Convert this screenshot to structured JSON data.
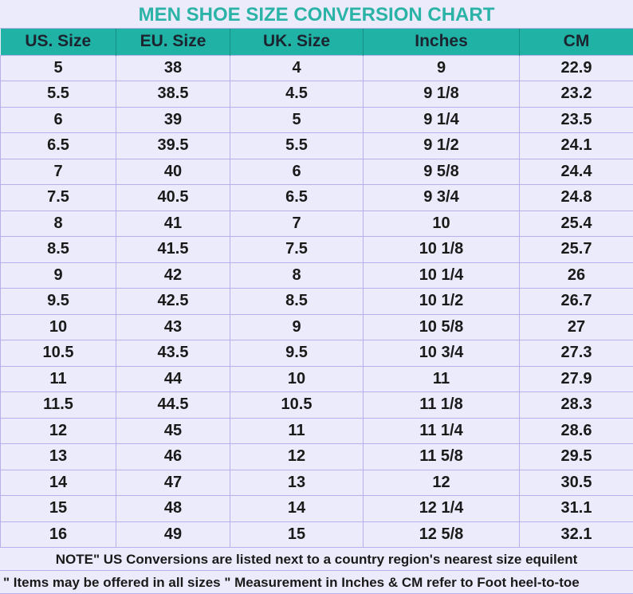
{
  "chart_data": {
    "type": "table",
    "title": "MEN SHOE SIZE CONVERSION CHART",
    "columns": [
      "US. Size",
      "EU. Size",
      "UK. Size",
      "Inches",
      "CM"
    ],
    "rows": [
      [
        "5",
        "38",
        "4",
        "9",
        "22.9"
      ],
      [
        "5.5",
        "38.5",
        "4.5",
        "9 1/8",
        "23.2"
      ],
      [
        "6",
        "39",
        "5",
        "9 1/4",
        "23.5"
      ],
      [
        "6.5",
        "39.5",
        "5.5",
        "9 1/2",
        "24.1"
      ],
      [
        "7",
        "40",
        "6",
        "9 5/8",
        "24.4"
      ],
      [
        "7.5",
        "40.5",
        "6.5",
        "9 3/4",
        "24.8"
      ],
      [
        "8",
        "41",
        "7",
        "10",
        "25.4"
      ],
      [
        "8.5",
        "41.5",
        "7.5",
        "10 1/8",
        "25.7"
      ],
      [
        "9",
        "42",
        "8",
        "10 1/4",
        "26"
      ],
      [
        "9.5",
        "42.5",
        "8.5",
        "10 1/2",
        "26.7"
      ],
      [
        "10",
        "43",
        "9",
        "10 5/8",
        "27"
      ],
      [
        "10.5",
        "43.5",
        "9.5",
        "10 3/4",
        "27.3"
      ],
      [
        "11",
        "44",
        "10",
        "11",
        "27.9"
      ],
      [
        "11.5",
        "44.5",
        "10.5",
        "11 1/8",
        "28.3"
      ],
      [
        "12",
        "45",
        "11",
        "11 1/4",
        "28.6"
      ],
      [
        "13",
        "46",
        "12",
        "11 5/8",
        "29.5"
      ],
      [
        "14",
        "47",
        "13",
        "12",
        "30.5"
      ],
      [
        "15",
        "48",
        "14",
        "12 1/4",
        "31.1"
      ],
      [
        "16",
        "49",
        "15",
        "12 5/8",
        "32.1"
      ]
    ],
    "notes": [
      "NOTE\" US Conversions are listed next to a country region's nearest size equilent",
      "\" Items may be offered in all sizes \" Measurement in Inches & CM refer to Foot heel-to-toe"
    ]
  },
  "colors": {
    "header": "#1fb2a5",
    "title": "#2ab3a6",
    "background": "#ecebfb",
    "border": "#b7b0ec"
  }
}
